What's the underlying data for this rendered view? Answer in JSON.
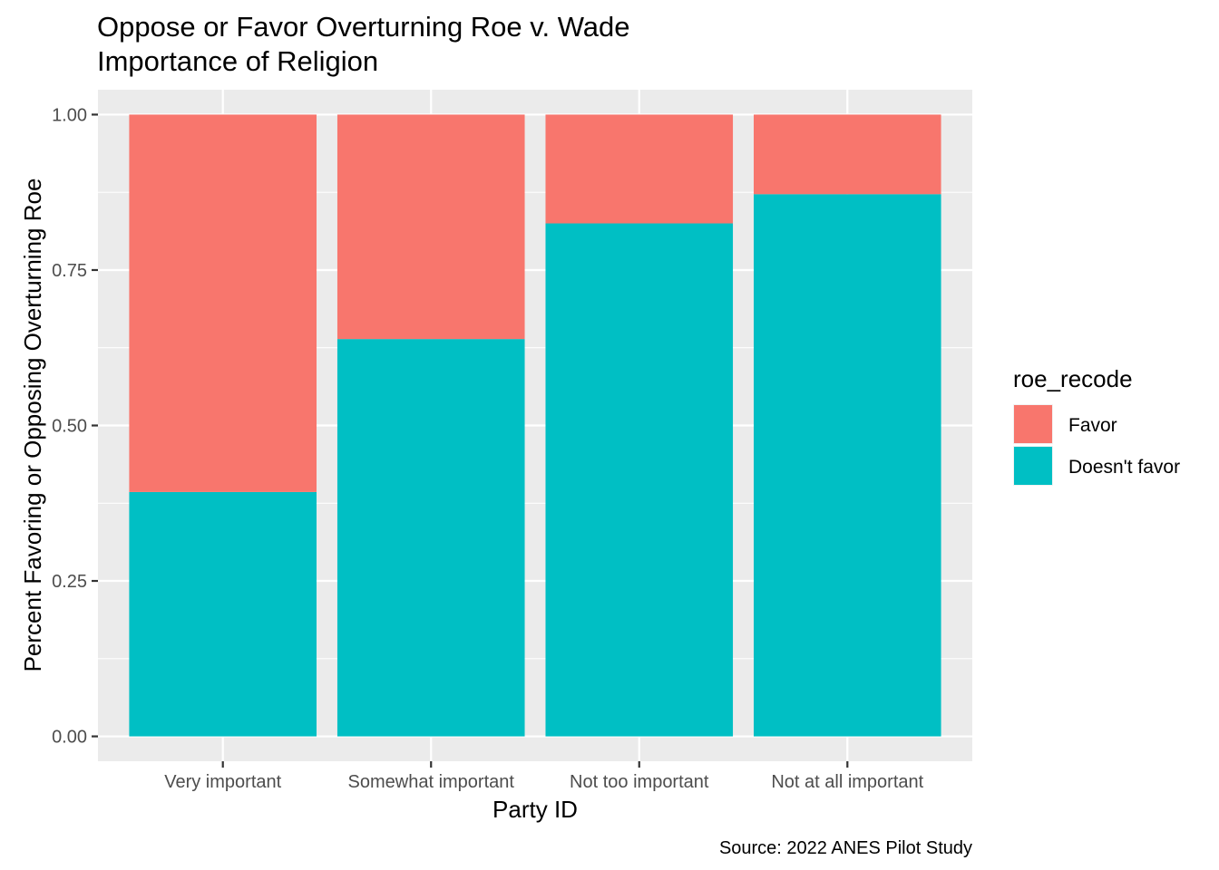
{
  "chart_data": {
    "type": "bar",
    "stacked": true,
    "title": "Oppose or Favor Overturning Roe v. Wade",
    "subtitle": "Importance of Religion",
    "xlabel": "Party ID",
    "ylabel": "Percent Favoring or Opposing Overturning Roe",
    "caption": "Source: 2022 ANES Pilot Study",
    "categories": [
      "Very important",
      "Somewhat important",
      "Not too important",
      "Not at all important"
    ],
    "series": [
      {
        "name": "Favor",
        "color": "#F8766D",
        "values": [
          0.607,
          0.361,
          0.175,
          0.128
        ]
      },
      {
        "name": "Doesn't favor",
        "color": "#00BFC4",
        "values": [
          0.393,
          0.639,
          0.825,
          0.872
        ]
      }
    ],
    "ylim": [
      -0.04,
      1.04
    ],
    "yticks": [
      0,
      0.25,
      0.5,
      0.75,
      1.0
    ],
    "ytick_labels": [
      "0.00",
      "0.25",
      "0.50",
      "0.75",
      "1.00"
    ],
    "legend": {
      "title": "roe_recode",
      "position": "right",
      "order": [
        "Favor",
        "Doesn't favor"
      ]
    },
    "grid": true,
    "panel_background": "#EBEBEB"
  }
}
